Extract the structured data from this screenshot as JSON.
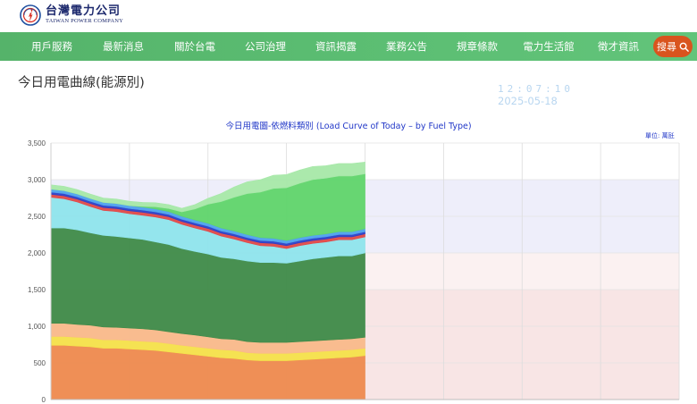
{
  "header": {
    "logo_cn": "台灣電力公司",
    "logo_en": "TAIWAN POWER COMPANY"
  },
  "nav": {
    "items": [
      {
        "label": "用戶服務"
      },
      {
        "label": "最新消息"
      },
      {
        "label": "關於台電"
      },
      {
        "label": "公司治理"
      },
      {
        "label": "資訊揭露"
      },
      {
        "label": "業務公告"
      },
      {
        "label": "規章條款"
      },
      {
        "label": "電力生活館"
      },
      {
        "label": "徵才資訊"
      }
    ],
    "search_label": "搜尋"
  },
  "page": {
    "title": "今日用電曲線(能源別)",
    "clock": "12:07:10",
    "date": "2025-05-18"
  },
  "colors": {
    "nav_bg": "#5bbd72",
    "search_bg": "#d9541e",
    "title_blue": "#2238c8"
  },
  "chart_data": {
    "type": "area",
    "title": "今日用電圖-依燃料類別 (Load Curve of Today – by Fuel Type)",
    "unit_label": "單位: 萬瓩",
    "ylim": [
      0,
      3500
    ],
    "yticks": [
      "0",
      "500",
      "1,000",
      "1,500",
      "2,000",
      "2,500",
      "3,000",
      "3,500"
    ],
    "x_hours": [
      0,
      24
    ],
    "bands": [
      {
        "from": 2500,
        "to": 3000,
        "color": "#eeeefa"
      },
      {
        "from": 2000,
        "to": 2500,
        "color": "#eeeefa"
      },
      {
        "from": 1500,
        "to": 2000,
        "color": "#fbf1f1"
      },
      {
        "from": 0,
        "to": 1500,
        "color": "#f8e5e5"
      }
    ],
    "x": [
      0,
      0.5,
      1,
      1.5,
      2,
      2.5,
      3,
      3.5,
      4,
      4.5,
      5,
      5.5,
      6,
      6.5,
      7,
      7.5,
      8,
      8.5,
      9,
      9.5,
      10,
      10.5,
      11,
      11.5,
      12
    ],
    "series": [
      {
        "color": "#ee8a4e",
        "values": [
          740,
          740,
          730,
          720,
          700,
          700,
          690,
          680,
          670,
          650,
          630,
          610,
          590,
          570,
          560,
          540,
          530,
          530,
          530,
          540,
          550,
          560,
          570,
          580,
          600
        ]
      },
      {
        "color": "#f4e24a",
        "values": [
          120,
          120,
          120,
          120,
          115,
          115,
          115,
          115,
          115,
          115,
          110,
          110,
          110,
          110,
          110,
          100,
          100,
          100,
          100,
          100,
          100,
          100,
          100,
          100,
          100
        ]
      },
      {
        "color": "#f9b98a",
        "values": [
          180,
          180,
          175,
          175,
          175,
          170,
          170,
          170,
          165,
          160,
          160,
          160,
          155,
          150,
          150,
          150,
          150,
          150,
          150,
          150,
          150,
          150,
          150,
          150,
          150
        ]
      },
      {
        "color": "#3e8a48",
        "values": [
          1300,
          1300,
          1290,
          1260,
          1250,
          1240,
          1230,
          1220,
          1200,
          1190,
          1160,
          1140,
          1130,
          1110,
          1100,
          1100,
          1090,
          1090,
          1080,
          1100,
          1120,
          1130,
          1140,
          1130,
          1150
        ]
      },
      {
        "color": "#8ee4ec",
        "values": [
          420,
          400,
          380,
          360,
          340,
          340,
          330,
          330,
          340,
          340,
          330,
          320,
          310,
          290,
          270,
          250,
          230,
          220,
          200,
          210,
          210,
          210,
          220,
          220,
          220
        ]
      },
      {
        "color": "#e04848",
        "values": [
          40,
          40,
          40,
          40,
          40,
          40,
          40,
          40,
          40,
          40,
          40,
          40,
          40,
          40,
          40,
          40,
          40,
          40,
          40,
          40,
          40,
          40,
          40,
          40,
          40
        ]
      },
      {
        "color": "#2b3fc8",
        "values": [
          30,
          30,
          30,
          30,
          30,
          30,
          30,
          30,
          30,
          30,
          30,
          30,
          30,
          30,
          30,
          30,
          30,
          30,
          30,
          30,
          30,
          30,
          30,
          30,
          30
        ]
      },
      {
        "color": "#4ea0ee",
        "values": [
          40,
          40,
          40,
          40,
          40,
          40,
          40,
          40,
          40,
          40,
          40,
          40,
          40,
          40,
          40,
          40,
          40,
          40,
          40,
          40,
          40,
          40,
          40,
          40,
          40
        ]
      },
      {
        "color": "#5fd46a",
        "values": [
          0,
          0,
          0,
          0,
          0,
          0,
          0,
          10,
          30,
          40,
          60,
          150,
          260,
          360,
          460,
          560,
          620,
          680,
          720,
          740,
          760,
          760,
          760,
          760,
          750
        ]
      },
      {
        "color": "#a6e8a8",
        "values": [
          60,
          60,
          60,
          60,
          60,
          60,
          60,
          55,
          55,
          55,
          50,
          60,
          80,
          110,
          140,
          160,
          170,
          180,
          180,
          180,
          180,
          170,
          170,
          170,
          160
        ]
      }
    ]
  }
}
